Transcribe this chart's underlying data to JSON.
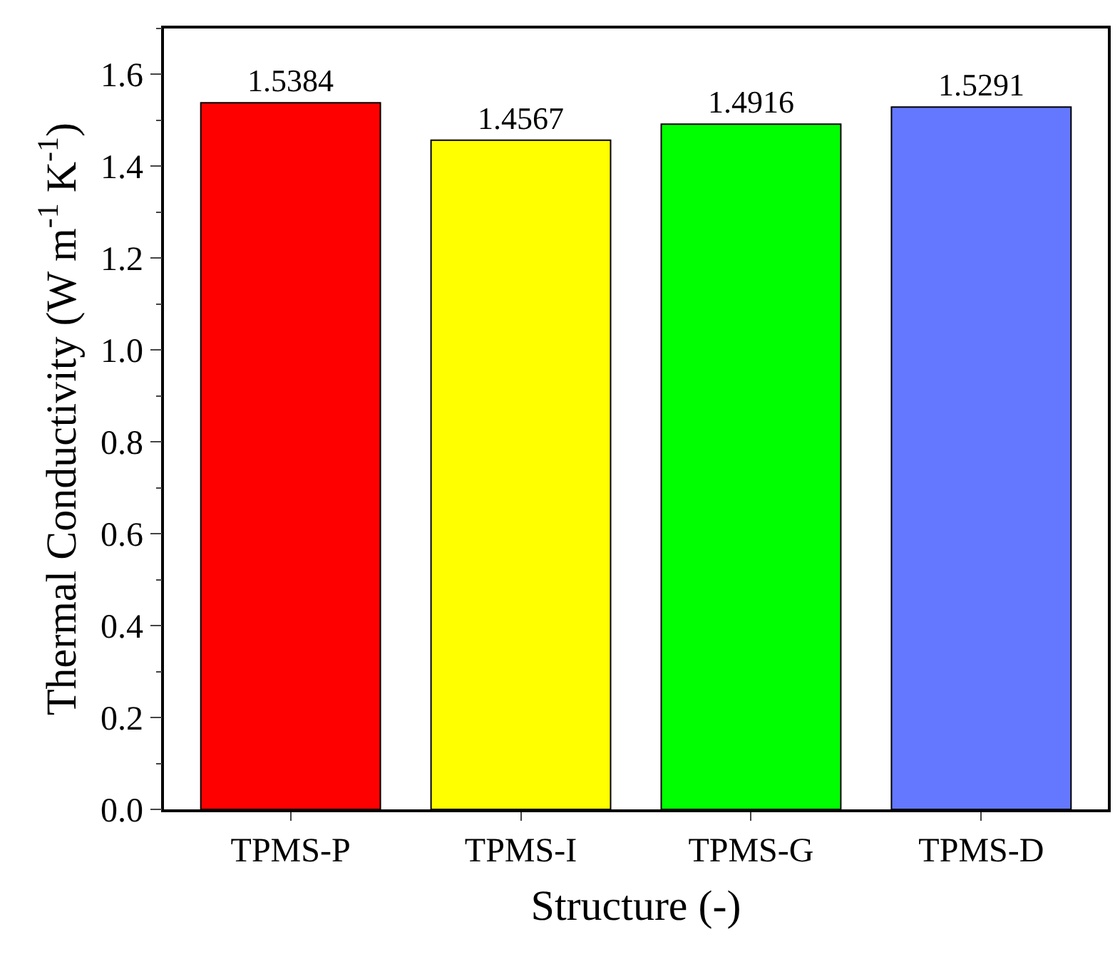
{
  "chart_data": {
    "type": "bar",
    "xlabel": "Structure (-)",
    "ylabel": "Thermal Conductivity (W m$^{-1}$ K$^{-1}$)",
    "categories": [
      "TPMS-P",
      "TPMS-I",
      "TPMS-G",
      "TPMS-D"
    ],
    "values": [
      1.5384,
      1.4567,
      1.4916,
      1.5291
    ],
    "colors": [
      "#ff0000",
      "#ffff00",
      "#00ff00",
      "#6478ff"
    ],
    "ylim": [
      0,
      1.7
    ],
    "yticks": [
      {
        "value": 0,
        "label": "0.0"
      },
      {
        "value": 0.2,
        "label": "0.2"
      },
      {
        "value": 0.4,
        "label": "0.4"
      },
      {
        "value": 0.6,
        "label": "0.6"
      },
      {
        "value": 0.8,
        "label": "0.8"
      },
      {
        "value": 1.0,
        "label": "1.0"
      },
      {
        "value": 1.2,
        "label": "1.2"
      },
      {
        "value": 1.4,
        "label": "1.4"
      },
      {
        "value": 1.6,
        "label": "1.6"
      }
    ],
    "data_labels": true
  }
}
